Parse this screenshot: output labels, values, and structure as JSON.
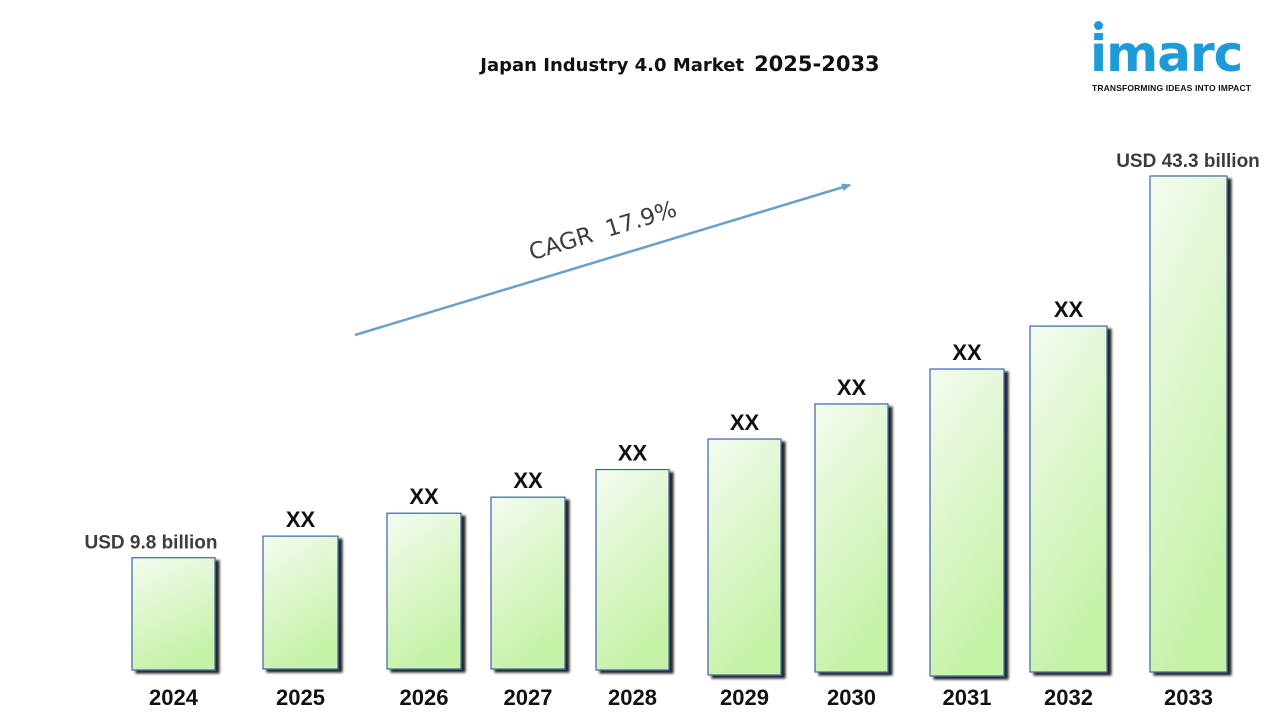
{
  "title": {
    "main": "Japan Industry 4.0 Market",
    "range": "2025-2033"
  },
  "logo": {
    "wordmark": "imarc",
    "tagline": "TRANSFORMING IDEAS INTO IMPACT",
    "color": "#1e9bd7"
  },
  "cagr_label": "CAGR  17.9%",
  "colors": {
    "bar_top": "#f4fbf0",
    "bar_bottom": "#c6f2a8",
    "bar_edge": "#3a64a8",
    "arrow": "#6a9fc8"
  },
  "chart_data": {
    "type": "bar",
    "categories": [
      "2024",
      "2025",
      "2026",
      "2027",
      "2028",
      "2029",
      "2030",
      "2031",
      "2032",
      "2033"
    ],
    "values": [
      9.8,
      11.6,
      13.6,
      15.0,
      17.5,
      20.6,
      23.4,
      26.8,
      30.2,
      43.3
    ],
    "data_labels": [
      "USD 9.8 billion",
      "XX",
      "XX",
      "XX",
      "XX",
      "XX",
      "XX",
      "XX",
      "XX",
      "USD 43.3 billion"
    ],
    "unit": "USD billion",
    "ylim": [
      0,
      43.3
    ],
    "grid": false,
    "legend": "none"
  }
}
